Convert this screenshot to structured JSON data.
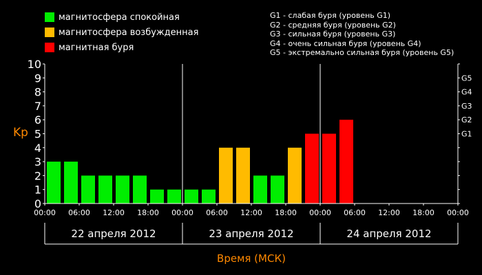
{
  "legend": {
    "items": [
      {
        "label": "магнитосфера спокойная",
        "color": "#00ee00"
      },
      {
        "label": "магнитосфера возбужденная",
        "color": "#ffbb00"
      },
      {
        "label": "магнитная буря",
        "color": "#ff0000"
      }
    ]
  },
  "storm_scale": [
    "G1 - слабая буря (уровень G1)",
    "G2 - средняя буря (уровень G2)",
    "G3 - сильная буря (уровень G3)",
    "G4 - очень сильная буря (уровень G4)",
    "G5 - экстремально сильная буря (уровень G5)"
  ],
  "colors": {
    "quiet": "#00ee00",
    "active": "#ffbb00",
    "storm": "#ff0000",
    "label_accent": "#ff8800"
  },
  "chart_data": {
    "type": "bar",
    "ylabel": "Kp",
    "xlabel": "Время (МСК)",
    "ylim": [
      0,
      10
    ],
    "y_ticks": [
      "0",
      "1",
      "2",
      "3",
      "4",
      "5",
      "6",
      "7",
      "8",
      "9",
      "10"
    ],
    "g_levels": [
      {
        "label": "G1",
        "kp": 5
      },
      {
        "label": "G2",
        "kp": 6
      },
      {
        "label": "G3",
        "kp": 7
      },
      {
        "label": "G4",
        "kp": 8
      },
      {
        "label": "G5",
        "kp": 9
      }
    ],
    "x_tick_labels": [
      "00:00",
      "06:00",
      "12:00",
      "18:00",
      "00:00",
      "06:00",
      "12:00",
      "18:00",
      "00:00",
      "06:00",
      "12:00",
      "18:00",
      "00:00"
    ],
    "days": [
      "22 апреля 2012",
      "23 апреля 2012",
      "24 апреля 2012"
    ],
    "interval_hours": 3,
    "total_hours": 72,
    "bars": [
      {
        "start_hour": 0,
        "kp": 3,
        "status": "quiet"
      },
      {
        "start_hour": 3,
        "kp": 3,
        "status": "quiet"
      },
      {
        "start_hour": 6,
        "kp": 2,
        "status": "quiet"
      },
      {
        "start_hour": 9,
        "kp": 2,
        "status": "quiet"
      },
      {
        "start_hour": 12,
        "kp": 2,
        "status": "quiet"
      },
      {
        "start_hour": 15,
        "kp": 2,
        "status": "quiet"
      },
      {
        "start_hour": 18,
        "kp": 1,
        "status": "quiet"
      },
      {
        "start_hour": 21,
        "kp": 1,
        "status": "quiet"
      },
      {
        "start_hour": 24,
        "kp": 1,
        "status": "quiet"
      },
      {
        "start_hour": 27,
        "kp": 1,
        "status": "quiet"
      },
      {
        "start_hour": 30,
        "kp": 4,
        "status": "active"
      },
      {
        "start_hour": 33,
        "kp": 4,
        "status": "active"
      },
      {
        "start_hour": 36,
        "kp": 2,
        "status": "quiet"
      },
      {
        "start_hour": 39,
        "kp": 2,
        "status": "quiet"
      },
      {
        "start_hour": 42,
        "kp": 4,
        "status": "active"
      },
      {
        "start_hour": 45,
        "kp": 5,
        "status": "storm"
      },
      {
        "start_hour": 48,
        "kp": 5,
        "status": "storm"
      },
      {
        "start_hour": 51,
        "kp": 6,
        "status": "storm"
      }
    ]
  }
}
